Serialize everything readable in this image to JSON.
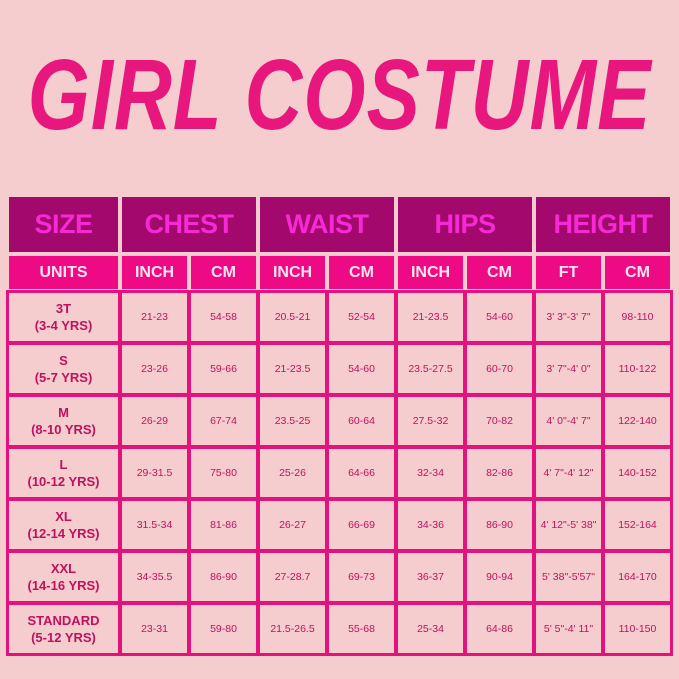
{
  "title": "GIRL COSTUME",
  "colors": {
    "background": "#f5cdcf",
    "title": "#e8177d",
    "header_bg": "#a3086d",
    "header_text": "#f52ad6",
    "units_bg": "#ee0a84",
    "border": "#e3127c",
    "cell_text": "#c0105e"
  },
  "table": {
    "groups": [
      {
        "label": "SIZE",
        "span": 1
      },
      {
        "label": "CHEST",
        "span": 2
      },
      {
        "label": "WAIST",
        "span": 2
      },
      {
        "label": "HIPS",
        "span": 2
      },
      {
        "label": "HEIGHT",
        "span": 2
      }
    ],
    "units": [
      "UNITS",
      "INCH",
      "CM",
      "INCH",
      "CM",
      "INCH",
      "CM",
      "FT",
      "CM"
    ],
    "rows": [
      {
        "size": "3T",
        "age": "(3-4 YRS)",
        "cells": [
          "21-23",
          "54-58",
          "20.5-21",
          "52-54",
          "21-23.5",
          "54-60",
          "3' 3\"-3' 7\"",
          "98-110"
        ]
      },
      {
        "size": "S",
        "age": "(5-7 YRS)",
        "cells": [
          "23-26",
          "59-66",
          "21-23.5",
          "54-60",
          "23.5-27.5",
          "60-70",
          "3' 7\"-4' 0\"",
          "110-122"
        ]
      },
      {
        "size": "M",
        "age": "(8-10 YRS)",
        "cells": [
          "26-29",
          "67-74",
          "23.5-25",
          "60-64",
          "27.5-32",
          "70-82",
          "4' 0\"-4' 7\"",
          "122-140"
        ]
      },
      {
        "size": "L",
        "age": "(10-12 YRS)",
        "cells": [
          "29-31.5",
          "75-80",
          "25-26",
          "64-66",
          "32-34",
          "82-86",
          "4' 7\"-4' 12\"",
          "140-152"
        ]
      },
      {
        "size": "XL",
        "age": "(12-14 YRS)",
        "cells": [
          "31.5-34",
          "81-86",
          "26-27",
          "66-69",
          "34-36",
          "86-90",
          "4' 12\"-5' 38\"",
          "152-164"
        ]
      },
      {
        "size": "XXL",
        "age": "(14-16 YRS)",
        "cells": [
          "34-35.5",
          "86-90",
          "27-28.7",
          "69-73",
          "36-37",
          "90-94",
          "5' 38\"-5'57\"",
          "164-170"
        ]
      },
      {
        "size": "STANDARD",
        "age": "(5-12 YRS)",
        "cells": [
          "23-31",
          "59-80",
          "21.5-26.5",
          "55-68",
          "25-34",
          "64-86",
          "5' 5\"-4' 11\"",
          "110-150"
        ]
      }
    ]
  }
}
